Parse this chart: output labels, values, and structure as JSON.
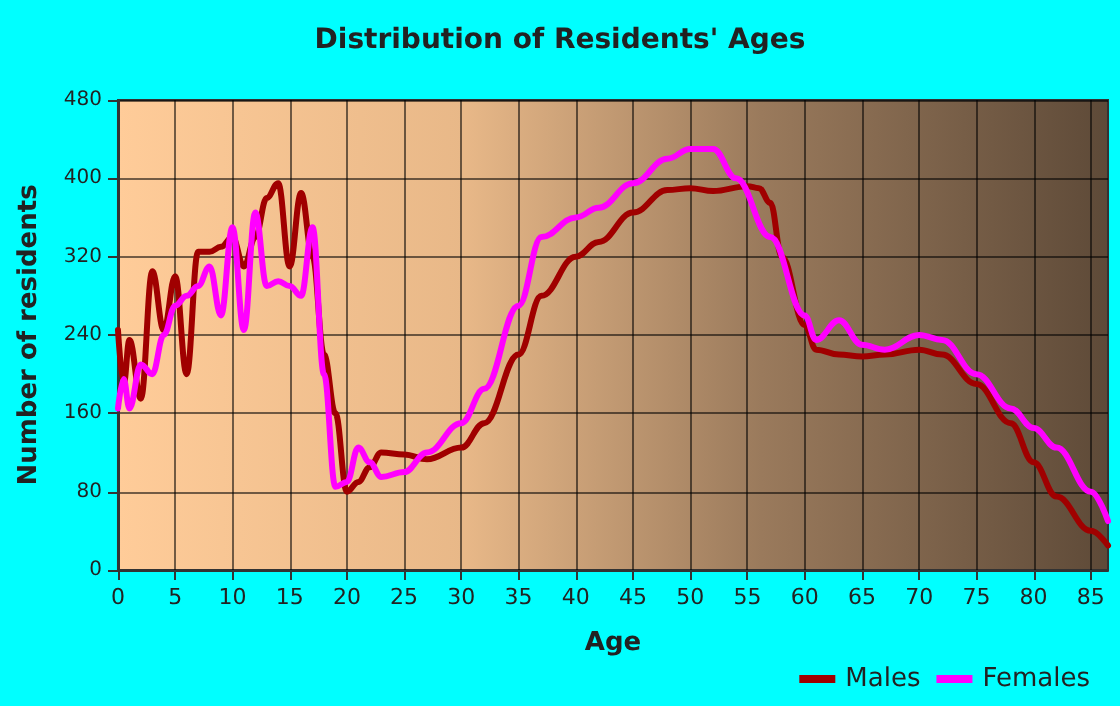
{
  "chart_data": {
    "type": "line",
    "title": "Distribution of Residents' Ages",
    "xlabel": "Age",
    "ylabel": "Number of residents",
    "xlim": [
      0,
      86.5
    ],
    "xticks": [
      0,
      5,
      10,
      15,
      20,
      25,
      30,
      35,
      40,
      45,
      50,
      55,
      60,
      65,
      70,
      75,
      80,
      85
    ],
    "ylim": [
      0,
      480
    ],
    "yticks": [
      0,
      80,
      160,
      240,
      320,
      400,
      480
    ],
    "grid": true,
    "legend": "bottom right",
    "marker": "none",
    "line_style": "solid",
    "series": [
      {
        "name": "Males",
        "color": "#a00000",
        "x": [
          0,
          0.5,
          1,
          2,
          3,
          4,
          5,
          6,
          7,
          8,
          9,
          10,
          11,
          12,
          13,
          14,
          15,
          16,
          17,
          18,
          19,
          20,
          21,
          22,
          23,
          25,
          27,
          30,
          32,
          35,
          37,
          40,
          42,
          45,
          48,
          50,
          52,
          55,
          56,
          57,
          58,
          60,
          61,
          63,
          65,
          67,
          70,
          72,
          75,
          78,
          80,
          82,
          85,
          86.5
        ],
        "values": [
          245,
          190,
          235,
          175,
          305,
          245,
          300,
          200,
          325,
          325,
          330,
          340,
          310,
          340,
          380,
          395,
          310,
          385,
          320,
          220,
          160,
          80,
          90,
          105,
          120,
          118,
          113,
          125,
          150,
          220,
          280,
          320,
          335,
          365,
          388,
          390,
          387,
          392,
          390,
          375,
          320,
          250,
          225,
          220,
          218,
          220,
          225,
          220,
          190,
          150,
          110,
          75,
          40,
          25
        ]
      },
      {
        "name": "Females",
        "color": "#ff00ff",
        "x": [
          0,
          0.5,
          1,
          2,
          3,
          4,
          5,
          6,
          7,
          8,
          9,
          10,
          11,
          12,
          13,
          14,
          15,
          16,
          17,
          18,
          19,
          20,
          21,
          22,
          23,
          25,
          27,
          30,
          32,
          35,
          37,
          40,
          42,
          45,
          48,
          50,
          52,
          54,
          57,
          60,
          61,
          63,
          65,
          67,
          70,
          72,
          75,
          78,
          80,
          82,
          85,
          86.5
        ],
        "values": [
          165,
          195,
          165,
          210,
          200,
          240,
          270,
          280,
          290,
          310,
          260,
          350,
          245,
          365,
          290,
          295,
          290,
          280,
          350,
          200,
          85,
          90,
          125,
          110,
          95,
          100,
          120,
          150,
          185,
          270,
          340,
          360,
          370,
          395,
          420,
          430,
          430,
          400,
          340,
          260,
          235,
          255,
          230,
          225,
          240,
          235,
          200,
          165,
          145,
          125,
          80,
          50
        ]
      }
    ]
  }
}
